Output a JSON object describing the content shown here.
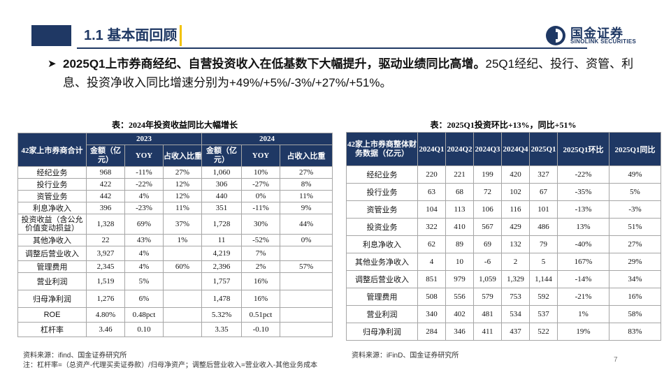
{
  "header": {
    "title": "1.1 基本面回顾"
  },
  "logo": {
    "cn": "国金证券",
    "en": "SINOLINK SECURITIES"
  },
  "bullet": {
    "bold": "2025Q1上市券商经纪、自营投资收入在低基数下大幅提升，驱动业绩同比高增。",
    "normal": "25Q1经纪、投行、资管、利息、投资净收入同比增速分别为+49%/+5%/-3%/+27%/+51%。"
  },
  "left_table": {
    "caption": "表：2024年投资收益同比大幅增长",
    "corner": "42家上市券商合计",
    "years": [
      "2023",
      "2024"
    ],
    "cols": [
      "金额（亿元）",
      "YOY",
      "占收入比重",
      "金额（亿元）",
      "YOY",
      "占收入比重"
    ],
    "rows": [
      [
        "经纪业务",
        "968",
        "-11%",
        "27%",
        "1,060",
        "10%",
        "27%"
      ],
      [
        "投行业务",
        "422",
        "-22%",
        "12%",
        "306",
        "-27%",
        "8%"
      ],
      [
        "资管业务",
        "442",
        "4%",
        "12%",
        "440",
        "0%",
        "11%"
      ],
      [
        "利息净收入",
        "396",
        "-23%",
        "11%",
        "351",
        "-11%",
        "9%"
      ],
      [
        "投资收益（含公允价值变动损益）",
        "1,328",
        "69%",
        "37%",
        "1,728",
        "30%",
        "44%"
      ],
      [
        "其他净收入",
        "22",
        "43%",
        "1%",
        "11",
        "-52%",
        "0%"
      ],
      [
        "调整后营业收入",
        "3,927",
        "4%",
        "",
        "4,219",
        "7%",
        ""
      ],
      [
        "管理费用",
        "2,345",
        "4%",
        "60%",
        "2,396",
        "2%",
        "57%"
      ],
      [
        "营业利润",
        "1,519",
        "5%",
        "",
        "1,757",
        "16%",
        ""
      ],
      [
        "归母净利润",
        "1,276",
        "6%",
        "",
        "1,478",
        "16%",
        ""
      ],
      [
        "ROE",
        "4.80%",
        "0.48pct",
        "",
        "5.32%",
        "0.51pct",
        ""
      ],
      [
        "杠杆率",
        "3.46",
        "0.10",
        "",
        "3.35",
        "-0.10",
        ""
      ]
    ],
    "source": "资料来源：ifind、国金证券研究所",
    "note": "注：杠杆率=（总资产-代理买卖证券款）/归母净资产；调整后营业收入=营业收入-其他业务成本"
  },
  "right_table": {
    "caption": "表：2025Q1投资环比+13%，同比+51%",
    "corner": "42家上市券商整体财务数据（亿元）",
    "cols": [
      "2024Q1",
      "2024Q2",
      "2024Q3",
      "2024Q4",
      "2025Q1",
      "2025Q1环比",
      "2025Q1同比"
    ],
    "rows": [
      [
        "经纪业务",
        "220",
        "221",
        "199",
        "420",
        "327",
        "-22%",
        "49%"
      ],
      [
        "投行业务",
        "63",
        "68",
        "72",
        "102",
        "67",
        "-35%",
        "5%"
      ],
      [
        "资管业务",
        "104",
        "113",
        "106",
        "116",
        "101",
        "-13%",
        "-3%"
      ],
      [
        "投资业务",
        "322",
        "410",
        "567",
        "429",
        "486",
        "13%",
        "51%"
      ],
      [
        "利息净收入",
        "62",
        "89",
        "69",
        "132",
        "79",
        "-40%",
        "27%"
      ],
      [
        "其他业务净收入",
        "4",
        "10",
        "-6",
        "2",
        "5",
        "167%",
        "29%"
      ],
      [
        "调整后营业收入",
        "851",
        "979",
        "1,059",
        "1,329",
        "1,144",
        "-14%",
        "34%"
      ],
      [
        "管理费用",
        "508",
        "556",
        "579",
        "753",
        "592",
        "-21%",
        "16%"
      ],
      [
        "营业利润",
        "340",
        "402",
        "481",
        "534",
        "537",
        "1%",
        "58%"
      ],
      [
        "归母净利润",
        "284",
        "346",
        "411",
        "437",
        "522",
        "19%",
        "83%"
      ]
    ],
    "source": "资料来源：iFinD、国金证券研究所"
  },
  "page_number": "7",
  "colors": {
    "header_blue": "#1f3864",
    "accent_yellow": "#f2c200",
    "grid": "#a6a6a6"
  }
}
